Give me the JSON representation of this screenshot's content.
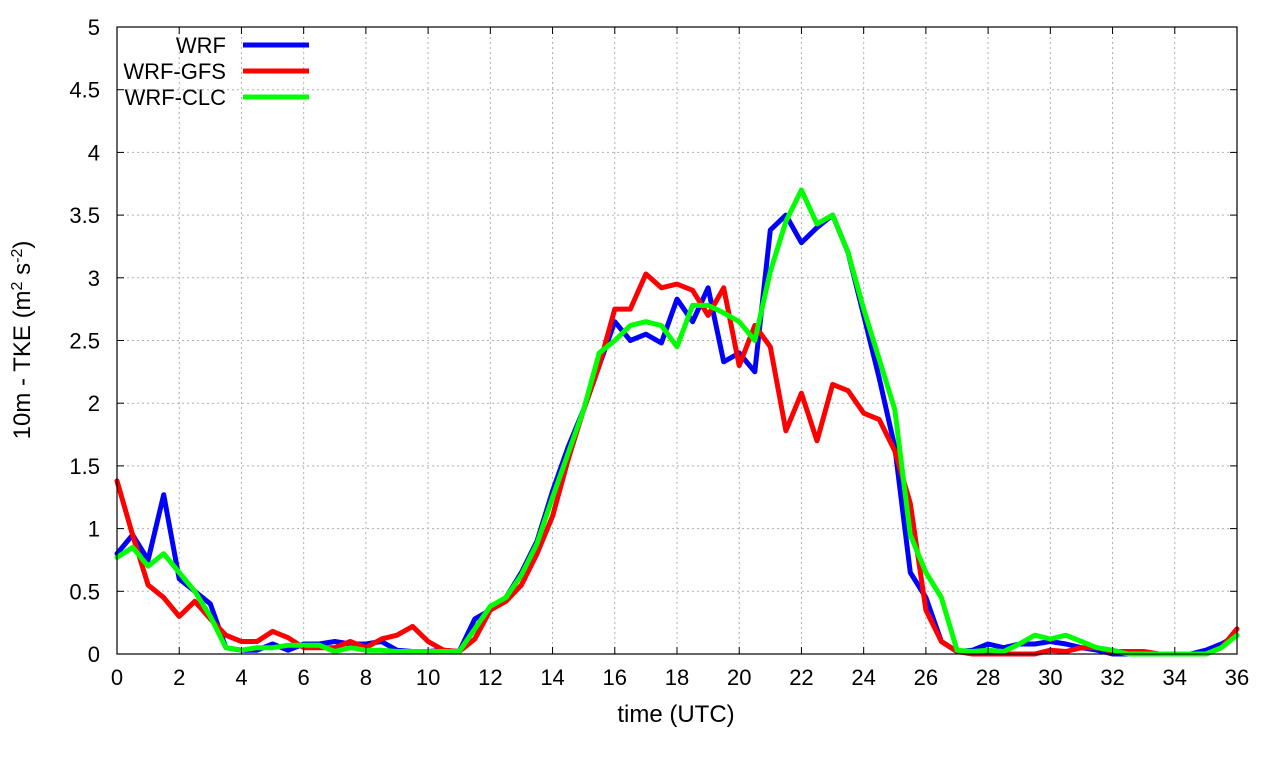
{
  "chart_data": {
    "type": "line",
    "xlabel": "time (UTC)",
    "ylabel_main": "10m - TKE (m",
    "ylabel_sup1": "2",
    "ylabel_mid": " s",
    "ylabel_sup2": "-2",
    "ylabel_end": ")",
    "xlim": [
      0,
      36
    ],
    "ylim": [
      0,
      5
    ],
    "xticks": [
      "0",
      "2",
      "4",
      "6",
      "8",
      "10",
      "12",
      "14",
      "16",
      "18",
      "20",
      "22",
      "24",
      "26",
      "28",
      "30",
      "32",
      "34",
      "36"
    ],
    "yticks": [
      "0",
      "0.5",
      "1",
      "1.5",
      "2",
      "2.5",
      "3",
      "3.5",
      "4",
      "4.5",
      "5"
    ],
    "grid": true,
    "legend_position": "top-left",
    "series": [
      {
        "name": "WRF",
        "color": "#0000ff",
        "x": [
          0,
          0.5,
          1,
          1.5,
          2,
          2.5,
          3,
          3.5,
          4,
          4.5,
          5,
          5.5,
          6,
          6.5,
          7,
          7.5,
          8,
          8.5,
          9,
          9.5,
          10,
          10.5,
          11,
          11.5,
          12,
          12.5,
          13,
          13.5,
          14,
          14.5,
          15,
          15.5,
          16,
          16.5,
          17,
          17.5,
          18,
          18.5,
          19,
          19.5,
          20,
          20.5,
          21,
          21.5,
          22,
          22.5,
          23,
          23.5,
          24,
          24.5,
          25,
          25.5,
          26,
          26.5,
          27,
          27.5,
          28,
          28.5,
          29,
          29.5,
          30,
          30.5,
          31,
          31.5,
          32,
          32.5,
          33,
          33.5,
          34,
          34.5,
          35,
          35.5,
          36
        ],
        "y": [
          0.8,
          0.95,
          0.75,
          1.27,
          0.6,
          0.5,
          0.4,
          0.05,
          0.03,
          0.03,
          0.08,
          0.03,
          0.08,
          0.08,
          0.1,
          0.08,
          0.08,
          0.1,
          0.03,
          0.02,
          0.02,
          0.03,
          0.02,
          0.28,
          0.35,
          0.45,
          0.65,
          0.9,
          1.3,
          1.65,
          1.95,
          2.3,
          2.65,
          2.5,
          2.55,
          2.48,
          2.83,
          2.65,
          2.92,
          2.33,
          2.4,
          2.25,
          3.38,
          3.5,
          3.28,
          3.4,
          3.5,
          3.2,
          2.7,
          2.2,
          1.65,
          0.65,
          0.45,
          0.1,
          0.02,
          0.03,
          0.08,
          0.05,
          0.08,
          0.08,
          0.1,
          0.08,
          0.05,
          0.03,
          0.0,
          0.0,
          0.0,
          0.0,
          0.0,
          0.0,
          0.03,
          0.08,
          0.15
        ]
      },
      {
        "name": "WRF-GFS",
        "color": "#ff0000",
        "x": [
          0,
          0.5,
          1,
          1.5,
          2,
          2.5,
          3,
          3.5,
          4,
          4.5,
          5,
          5.5,
          6,
          6.5,
          7,
          7.5,
          8,
          8.5,
          9,
          9.5,
          10,
          10.5,
          11,
          11.5,
          12,
          12.5,
          13,
          13.5,
          14,
          14.5,
          15,
          15.5,
          16,
          16.5,
          17,
          17.5,
          18,
          18.5,
          19,
          19.5,
          20,
          20.5,
          21,
          21.5,
          22,
          22.5,
          23,
          23.5,
          24,
          24.5,
          25,
          25.5,
          26,
          26.5,
          27,
          27.5,
          28,
          28.5,
          29,
          29.5,
          30,
          30.5,
          31,
          31.5,
          32,
          32.5,
          33,
          33.5,
          34,
          34.5,
          35,
          35.5,
          36
        ],
        "y": [
          1.38,
          0.95,
          0.55,
          0.45,
          0.3,
          0.42,
          0.28,
          0.15,
          0.1,
          0.1,
          0.18,
          0.13,
          0.05,
          0.05,
          0.05,
          0.1,
          0.05,
          0.12,
          0.15,
          0.22,
          0.1,
          0.03,
          0.02,
          0.12,
          0.35,
          0.42,
          0.55,
          0.8,
          1.1,
          1.55,
          1.95,
          2.3,
          2.75,
          2.75,
          3.03,
          2.92,
          2.95,
          2.9,
          2.7,
          2.92,
          2.3,
          2.62,
          2.45,
          1.78,
          2.08,
          1.7,
          2.15,
          2.1,
          1.92,
          1.87,
          1.62,
          1.2,
          0.35,
          0.1,
          0.02,
          0.0,
          0.0,
          0.0,
          0.0,
          0.0,
          0.03,
          0.02,
          0.05,
          0.05,
          0.02,
          0.02,
          0.02,
          0.0,
          0.0,
          0.0,
          0.0,
          0.05,
          0.2
        ]
      },
      {
        "name": "WRF-CLC",
        "color": "#00ff00",
        "x": [
          0,
          0.5,
          1,
          1.5,
          2,
          2.5,
          3,
          3.5,
          4,
          4.5,
          5,
          5.5,
          6,
          6.5,
          7,
          7.5,
          8,
          8.5,
          9,
          9.5,
          10,
          10.5,
          11,
          11.5,
          12,
          12.5,
          13,
          13.5,
          14,
          14.5,
          15,
          15.5,
          16,
          16.5,
          17,
          17.5,
          18,
          18.5,
          19,
          19.5,
          20,
          20.5,
          21,
          21.5,
          22,
          22.5,
          23,
          23.5,
          24,
          24.5,
          25,
          25.5,
          26,
          26.5,
          27,
          27.5,
          28,
          28.5,
          29,
          29.5,
          30,
          30.5,
          31,
          31.5,
          32,
          32.5,
          33,
          33.5,
          34,
          34.5,
          35,
          35.5,
          36
        ],
        "y": [
          0.77,
          0.85,
          0.7,
          0.8,
          0.65,
          0.5,
          0.3,
          0.05,
          0.03,
          0.05,
          0.05,
          0.07,
          0.07,
          0.07,
          0.02,
          0.05,
          0.03,
          0.03,
          0.02,
          0.02,
          0.02,
          0.02,
          0.02,
          0.2,
          0.38,
          0.45,
          0.63,
          0.88,
          1.25,
          1.6,
          1.95,
          2.4,
          2.5,
          2.62,
          2.65,
          2.62,
          2.45,
          2.78,
          2.78,
          2.72,
          2.65,
          2.5,
          3.05,
          3.45,
          3.7,
          3.43,
          3.5,
          3.2,
          2.75,
          2.35,
          1.95,
          0.95,
          0.65,
          0.45,
          0.03,
          0.02,
          0.03,
          0.02,
          0.08,
          0.15,
          0.12,
          0.15,
          0.1,
          0.05,
          0.03,
          0.0,
          0.0,
          0.0,
          0.0,
          0.0,
          0.0,
          0.05,
          0.15
        ]
      }
    ]
  }
}
